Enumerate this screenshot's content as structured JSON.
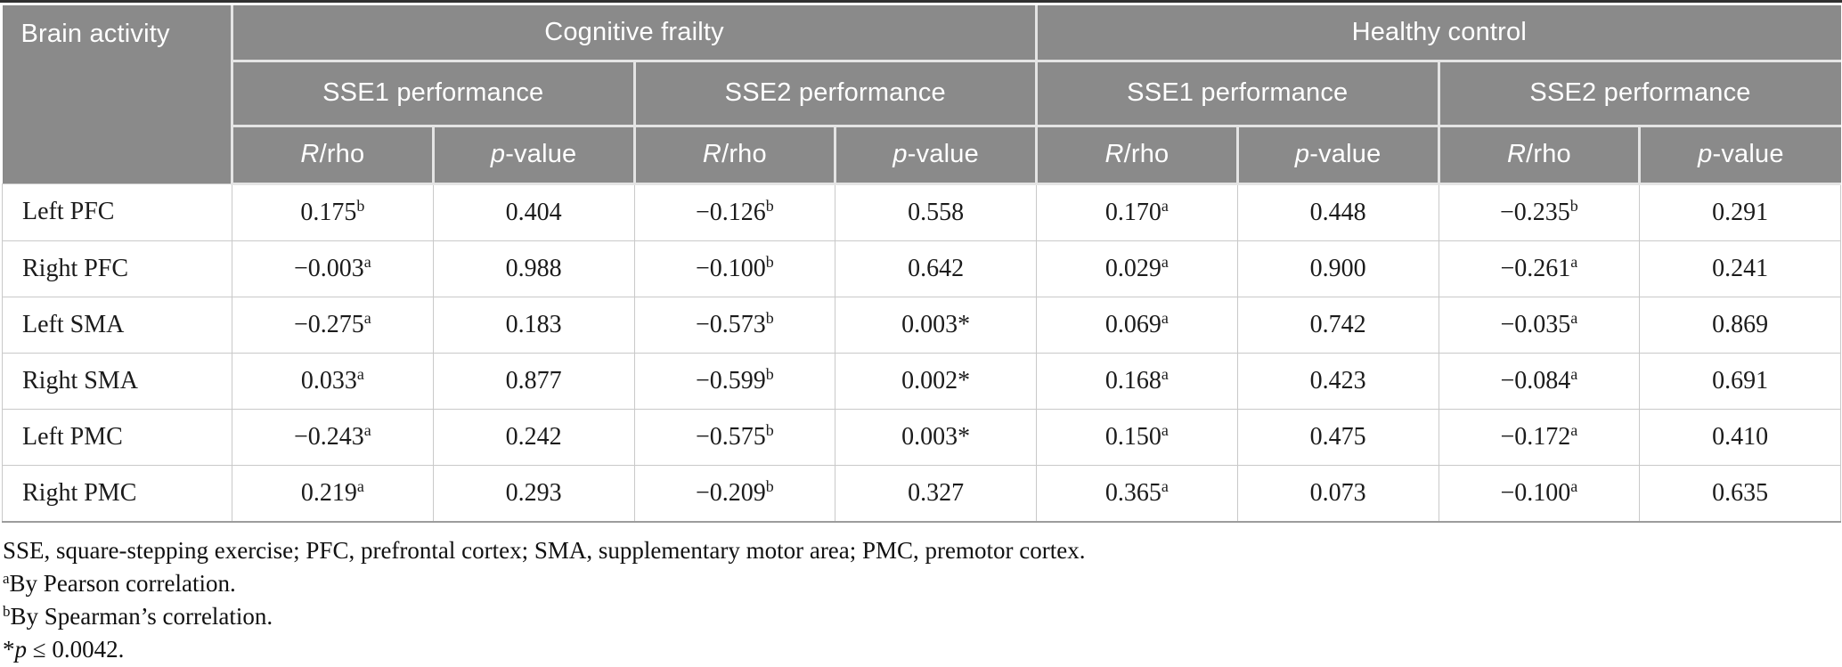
{
  "colors": {
    "header_bg": "#8a8a8a",
    "header_text": "#ffffff",
    "top_rule": "#303030",
    "body_border": "#c9c9c9",
    "table_bottom_border": "#9c9c9c",
    "body_text": "#1b1b1b"
  },
  "table": {
    "header": {
      "col1": "Brain\nactivity",
      "groups": [
        {
          "label": "Cognitive frailty"
        },
        {
          "label": "Healthy control"
        }
      ],
      "subgroups": [
        "SSE1 performance",
        "SSE2 performance",
        "SSE1 performance",
        "SSE2 performance"
      ],
      "metric_r": [
        {
          "text": "R",
          "style": "italic"
        },
        {
          "text": "/rho",
          "style": "normal"
        }
      ],
      "metric_p": [
        {
          "text": "p",
          "style": "italic"
        },
        {
          "text": "-value",
          "style": "normal"
        }
      ]
    },
    "rows": [
      {
        "label": "Left PFC",
        "cells": [
          {
            "text": "0.175",
            "sup": "b"
          },
          {
            "text": "0.404"
          },
          {
            "text": "−0.126",
            "sup": "b"
          },
          {
            "text": "0.558"
          },
          {
            "text": "0.170",
            "sup": "a"
          },
          {
            "text": "0.448"
          },
          {
            "text": "−0.235",
            "sup": "b"
          },
          {
            "text": "0.291"
          }
        ]
      },
      {
        "label": "Right PFC",
        "cells": [
          {
            "text": "−0.003",
            "sup": "a"
          },
          {
            "text": "0.988"
          },
          {
            "text": "−0.100",
            "sup": "b"
          },
          {
            "text": "0.642"
          },
          {
            "text": "0.029",
            "sup": "a"
          },
          {
            "text": "0.900"
          },
          {
            "text": "−0.261",
            "sup": "a"
          },
          {
            "text": "0.241"
          }
        ]
      },
      {
        "label": "Left SMA",
        "cells": [
          {
            "text": "−0.275",
            "sup": "a"
          },
          {
            "text": "0.183"
          },
          {
            "text": "−0.573",
            "sup": "b"
          },
          {
            "text": "0.003*"
          },
          {
            "text": "0.069",
            "sup": "a"
          },
          {
            "text": "0.742"
          },
          {
            "text": "−0.035",
            "sup": "a"
          },
          {
            "text": "0.869"
          }
        ]
      },
      {
        "label": "Right SMA",
        "cells": [
          {
            "text": "0.033",
            "sup": "a"
          },
          {
            "text": "0.877"
          },
          {
            "text": "−0.599",
            "sup": "b"
          },
          {
            "text": "0.002*"
          },
          {
            "text": "0.168",
            "sup": "a"
          },
          {
            "text": "0.423"
          },
          {
            "text": "−0.084",
            "sup": "a"
          },
          {
            "text": "0.691"
          }
        ]
      },
      {
        "label": "Left PMC",
        "cells": [
          {
            "text": "−0.243",
            "sup": "a"
          },
          {
            "text": "0.242"
          },
          {
            "text": "−0.575",
            "sup": "b"
          },
          {
            "text": "0.003*"
          },
          {
            "text": "0.150",
            "sup": "a"
          },
          {
            "text": "0.475"
          },
          {
            "text": "−0.172",
            "sup": "a"
          },
          {
            "text": "0.410"
          }
        ]
      },
      {
        "label": "Right PMC",
        "cells": [
          {
            "text": "0.219",
            "sup": "a"
          },
          {
            "text": "0.293"
          },
          {
            "text": "−0.209",
            "sup": "b"
          },
          {
            "text": "0.327"
          },
          {
            "text": "0.365",
            "sup": "a"
          },
          {
            "text": "0.073"
          },
          {
            "text": "−0.100",
            "sup": "a"
          },
          {
            "text": "0.635"
          }
        ]
      }
    ]
  },
  "footnotes": [
    {
      "segments": [
        {
          "text": "SSE, square-stepping exercise; PFC, prefrontal cortex; SMA, supplementary motor area; PMC, premotor cortex.",
          "style": "normal"
        }
      ]
    },
    {
      "segments": [
        {
          "text": "a",
          "style": "sup"
        },
        {
          "text": "By Pearson correlation.",
          "style": "normal"
        }
      ]
    },
    {
      "segments": [
        {
          "text": "b",
          "style": "sup"
        },
        {
          "text": "By Spearman’s correlation.",
          "style": "normal"
        }
      ]
    },
    {
      "segments": [
        {
          "text": "*",
          "style": "normal"
        },
        {
          "text": "p",
          "style": "italic"
        },
        {
          "text": " ≤ 0.0042.",
          "style": "normal"
        }
      ]
    }
  ]
}
